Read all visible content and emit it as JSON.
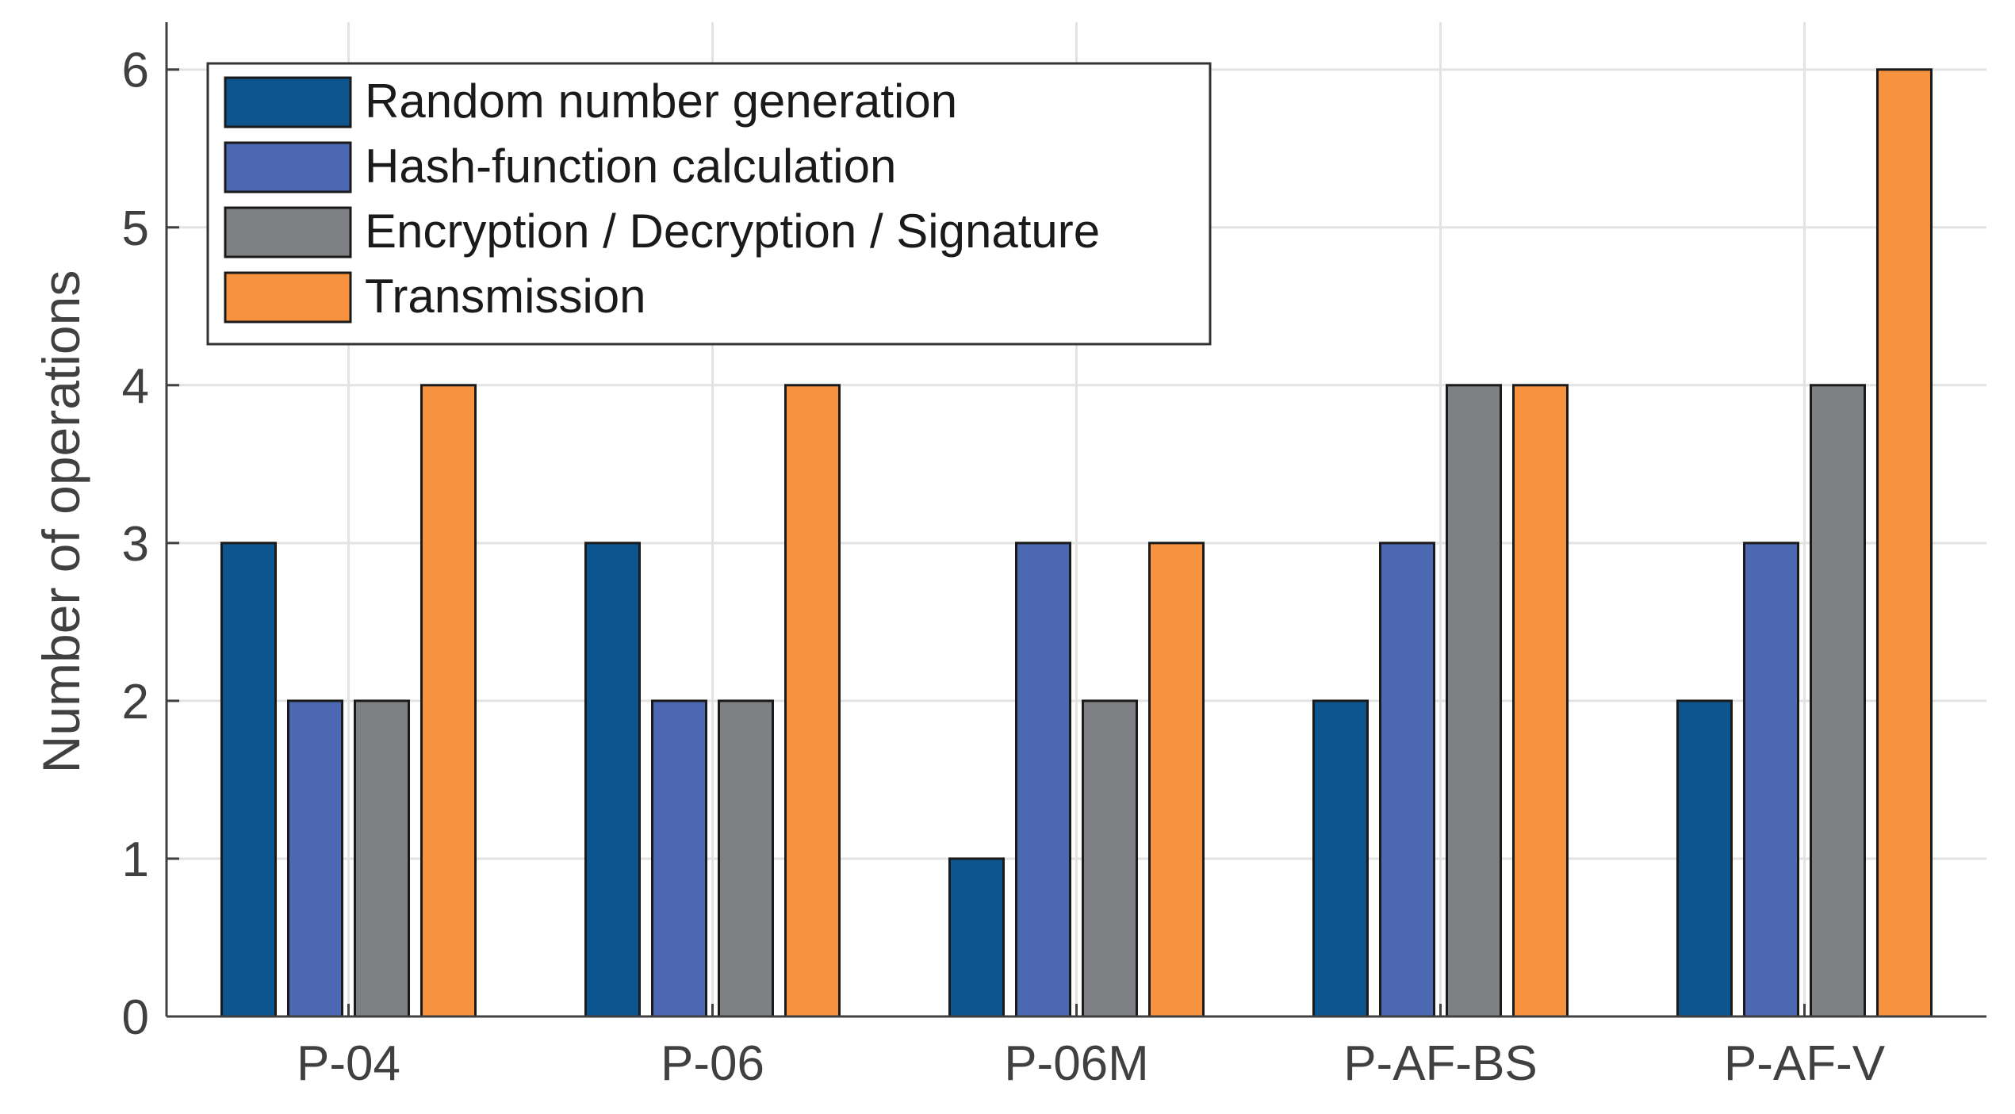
{
  "chart_data": {
    "type": "bar",
    "title": "",
    "xlabel": "",
    "ylabel": "Number of operations",
    "ylim": [
      0,
      6.3
    ],
    "yticks": [
      0,
      1,
      2,
      3,
      4,
      5,
      6
    ],
    "grid": true,
    "legend_position": "top-left",
    "categories": [
      "P-04",
      "P-06",
      "P-06M",
      "P-AF-BS",
      "P-AF-V"
    ],
    "series": [
      {
        "name": "Random number generation",
        "color": "#0d558f",
        "values": [
          3,
          3,
          1,
          2,
          2
        ]
      },
      {
        "name": "Hash-function calculation",
        "color": "#4d68b3",
        "values": [
          2,
          2,
          3,
          3,
          3
        ]
      },
      {
        "name": "Encryption / Decryption / Signature",
        "color": "#7f8083",
        "values": [
          2,
          2,
          2,
          4,
          4
        ]
      },
      {
        "name": "Transmission",
        "color": "#f7923f",
        "values": [
          4,
          4,
          3,
          4,
          6
        ]
      }
    ]
  }
}
